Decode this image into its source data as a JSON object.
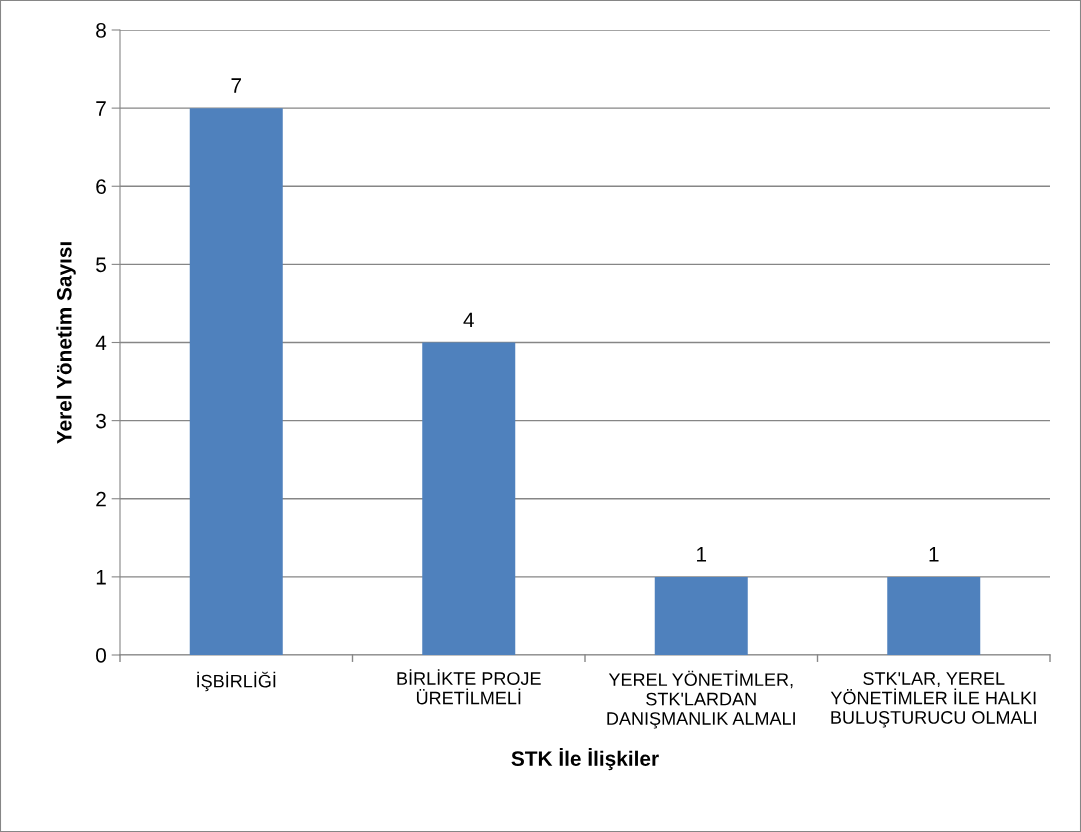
{
  "chart_data": {
    "type": "bar",
    "xlabel": "STK İle İlişkiler",
    "ylabel": "Yerel Yönetim Sayısı",
    "categories": [
      "İŞBİRLİĞİ",
      "BİRLİKTE PROJE\nÜRETİLMELİ",
      "YEREL YÖNETİMLER,\nSTK'LARDAN\nDANIŞMANLIK ALMALI",
      "STK'LAR, YEREL\nYÖNETİMLER İLE HALKI\nBULUŞTURUCU OLMALI"
    ],
    "values": [
      7,
      4,
      1,
      1
    ],
    "color": "#4f81bd",
    "ylim": [
      0,
      8
    ],
    "yticks": [
      0,
      1,
      2,
      3,
      4,
      5,
      6,
      7,
      8
    ],
    "grid": "y",
    "data_labels": true,
    "legend": false
  }
}
